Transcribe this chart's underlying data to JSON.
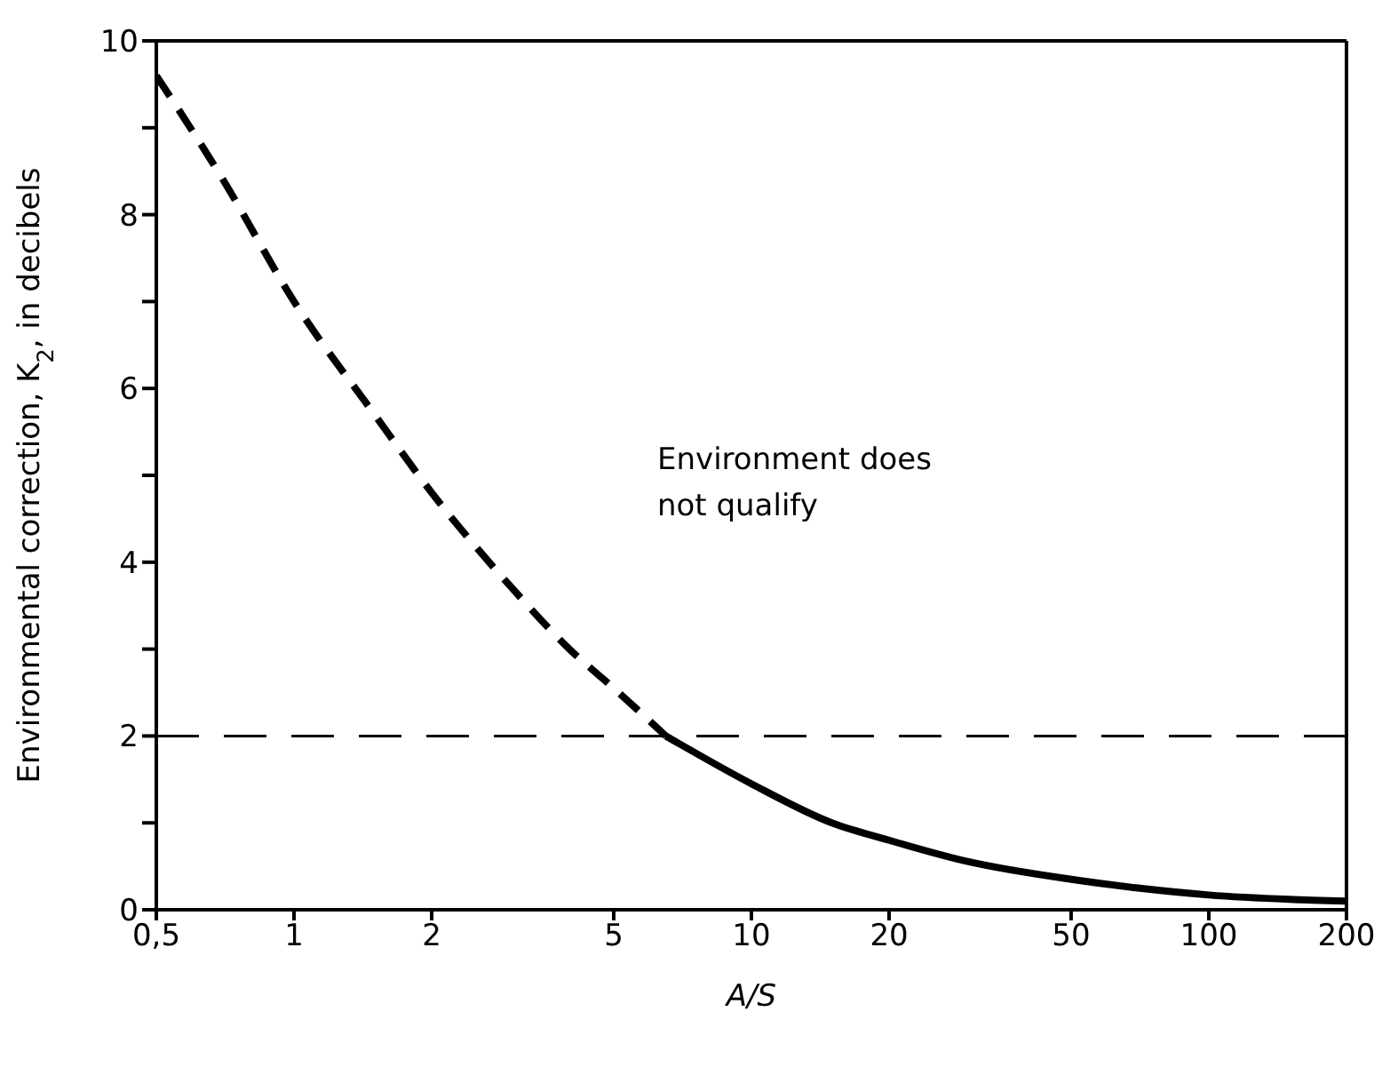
{
  "chart_data": {
    "type": "line",
    "xlabel": "A/S",
    "ylabel": "Environmental correction, K$_{2}$, in decibels",
    "log": "x",
    "xlim": [
      0.5,
      200
    ],
    "xticks": [
      {
        "value": 0.5,
        "label": "0,5"
      },
      1,
      2,
      5,
      10,
      20,
      50,
      100,
      200
    ],
    "ylim": [
      0,
      10
    ],
    "yticks": [
      0,
      {
        "value": 1,
        "label": null
      },
      2,
      {
        "value": 3,
        "label": null
      },
      4,
      {
        "value": 5,
        "label": null
      },
      6,
      {
        "value": 7,
        "label": null
      },
      8,
      {
        "value": 9,
        "label": null
      },
      10
    ],
    "marker": "none",
    "series": [
      {
        "color": "#000000",
        "line_style": "dashed",
        "x": [
          0.5,
          0.7,
          1,
          1.5,
          2,
          3,
          4,
          5,
          6.5
        ],
        "values": [
          9.6,
          8.4,
          7.0,
          5.7,
          4.8,
          3.7,
          3.0,
          2.55,
          2.0
        ]
      },
      {
        "color": "#000000",
        "line_style": "solid",
        "x": [
          6.5,
          10,
          15,
          20,
          30,
          50,
          70,
          100,
          150,
          200
        ],
        "values": [
          2.0,
          1.45,
          1.0,
          0.8,
          0.55,
          0.35,
          0.25,
          0.17,
          0.12,
          0.1
        ]
      }
    ],
    "ref_lines": [
      {
        "axis": "y",
        "value": 2,
        "color": "#000000",
        "line_style": "dashed"
      }
    ],
    "annotations": [
      "Environment does\nnot qualify"
    ]
  }
}
